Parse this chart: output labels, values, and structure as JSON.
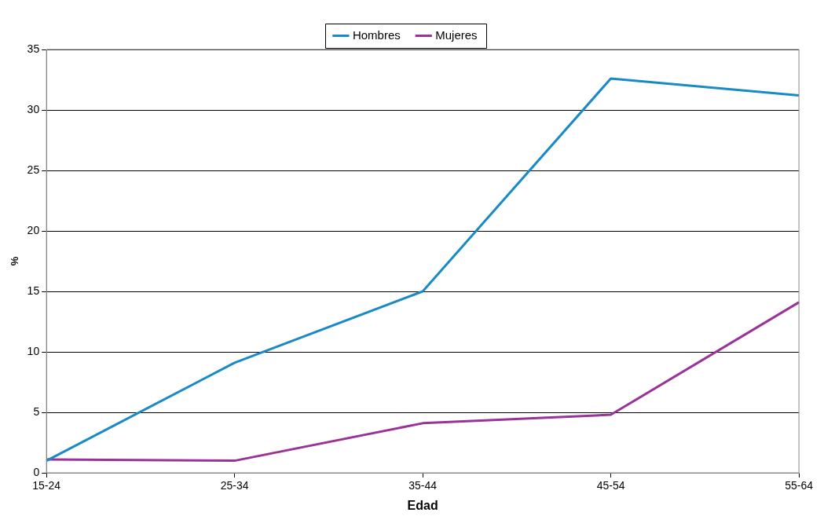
{
  "chart_data": {
    "type": "line",
    "xlabel": "Edad",
    "ylabel": "%",
    "categories": [
      "15-24",
      "25-34",
      "35-44",
      "45-54",
      "55-64"
    ],
    "series": [
      {
        "name": "Hombres",
        "color": "#1a8ac6",
        "values": [
          1.0,
          9.1,
          15.0,
          32.6,
          31.2
        ]
      },
      {
        "name": "Mujeres",
        "color": "#993399",
        "values": [
          1.1,
          1.0,
          4.1,
          4.8,
          14.1
        ]
      }
    ],
    "ylim": [
      0,
      35
    ],
    "yticks": [
      0,
      5,
      10,
      15,
      20,
      25,
      30,
      35
    ],
    "grid": "y",
    "legend": "top",
    "marker": "none",
    "line_style": "solid"
  }
}
